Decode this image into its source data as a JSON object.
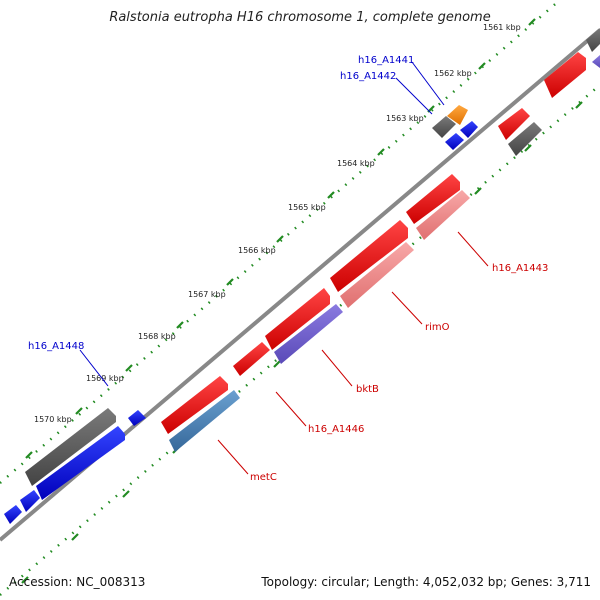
{
  "title": "Ralstonia eutropha H16 chromosome 1, complete genome",
  "footer": {
    "accession": "Accession: NC_008313",
    "summary": "Topology: circular; Length: 4,052,032 bp; Genes: 3,711"
  },
  "ticks": [
    {
      "label": "1561 kbp"
    },
    {
      "label": "1562 kbp"
    },
    {
      "label": "1563 kbp"
    },
    {
      "label": "1564 kbp"
    },
    {
      "label": "1565 kbp"
    },
    {
      "label": "1566 kbp"
    },
    {
      "label": "1567 kbp"
    },
    {
      "label": "1568 kbp"
    },
    {
      "label": "1569 kbp"
    },
    {
      "label": "1570 kbp"
    }
  ],
  "genes": [
    {
      "name": "h16_A1441",
      "color": "#0000cc"
    },
    {
      "name": "h16_A1442",
      "color": "#0000cc"
    },
    {
      "name": "h16_A1443",
      "color": "#cc0000"
    },
    {
      "name": "rimO",
      "color": "#cc0000"
    },
    {
      "name": "bktB",
      "color": "#cc0000"
    },
    {
      "name": "h16_A1446",
      "color": "#cc0000"
    },
    {
      "name": "metC",
      "color": "#cc0000"
    },
    {
      "name": "h16_A1448",
      "color": "#0000cc"
    }
  ],
  "colors": {
    "cds_red": "#ee0000",
    "rna_pink": "#f08080",
    "purple": "#6a5acd",
    "steel": "#4682b4",
    "blue": "#0000ee",
    "gray": "#555555",
    "orange": "#ff8c00",
    "axis": "#888888",
    "tick_green": "#228b22"
  }
}
